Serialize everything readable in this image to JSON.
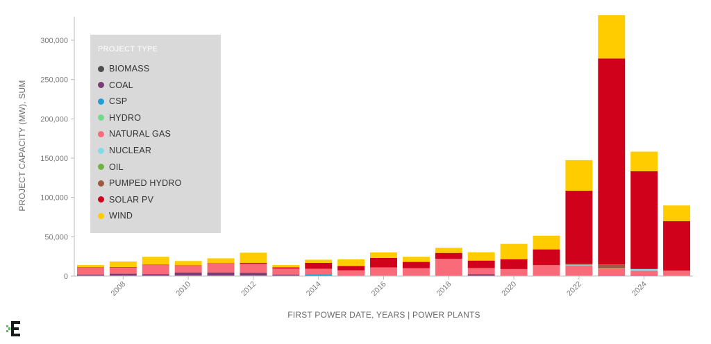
{
  "chart_data": {
    "type": "bar",
    "stacked": true,
    "xlabel": "FIRST POWER DATE, YEARS | POWER PLANTS",
    "ylabel": "PROJECT CAPACITY (MW), SUM",
    "ylim": [
      0,
      330000
    ],
    "yticks": [
      0,
      50000,
      100000,
      150000,
      200000,
      250000,
      300000
    ],
    "ytick_labels": [
      "0",
      "50,000",
      "100,000",
      "150,000",
      "200,000",
      "250,000",
      "300,000"
    ],
    "xlim": [
      2006.5,
      2025.5
    ],
    "xticks": [
      2008,
      2010,
      2012,
      2014,
      2016,
      2018,
      2020,
      2022,
      2024
    ],
    "xtick_labels": [
      "2008",
      "2010",
      "2012",
      "2014",
      "2016",
      "2018",
      "2020",
      "2022",
      "2024"
    ],
    "grid": false,
    "legend": {
      "title": "PROJECT TYPE",
      "placement": "top-left"
    },
    "categories": [
      2007,
      2008,
      2009,
      2010,
      2011,
      2012,
      2013,
      2014,
      2015,
      2016,
      2017,
      2018,
      2019,
      2020,
      2021,
      2022,
      2023,
      2024,
      2025
    ],
    "series": [
      {
        "name": "BIOMASS",
        "color": "#4d4d4d",
        "values": [
          500,
          500,
          500,
          600,
          600,
          700,
          500,
          300,
          200,
          200,
          200,
          100,
          200,
          100,
          100,
          200,
          300,
          300,
          100
        ]
      },
      {
        "name": "COAL",
        "color": "#7b3b73",
        "values": [
          1500,
          2500,
          2000,
          4000,
          4000,
          3500,
          1500,
          500,
          500,
          300,
          300,
          300,
          2000,
          300,
          300,
          300,
          500,
          500,
          200
        ]
      },
      {
        "name": "CSP",
        "color": "#1f9fd6",
        "values": [
          0,
          0,
          0,
          0,
          0,
          0,
          0,
          1500,
          0,
          0,
          0,
          0,
          0,
          0,
          0,
          0,
          0,
          0,
          0
        ]
      },
      {
        "name": "HYDRO",
        "color": "#6fdc8c",
        "values": [
          0,
          0,
          0,
          0,
          0,
          0,
          0,
          0,
          0,
          0,
          0,
          0,
          0,
          0,
          0,
          0,
          0,
          0,
          0
        ]
      },
      {
        "name": "NATURAL GAS",
        "color": "#fa6b7a",
        "values": [
          8500,
          8000,
          11500,
          8500,
          11500,
          11000,
          7500,
          7000,
          6500,
          10500,
          9500,
          21500,
          8000,
          8500,
          13500,
          13000,
          8500,
          6000,
          6500
        ]
      },
      {
        "name": "NUCLEAR",
        "color": "#7fdde6",
        "values": [
          0,
          0,
          0,
          0,
          0,
          0,
          0,
          0,
          0,
          0,
          0,
          0,
          0,
          0,
          0,
          1000,
          500,
          2000,
          0
        ]
      },
      {
        "name": "OIL",
        "color": "#6fb43f",
        "values": [
          0,
          0,
          0,
          0,
          0,
          0,
          0,
          0,
          0,
          0,
          0,
          0,
          0,
          0,
          0,
          0,
          0,
          0,
          0
        ]
      },
      {
        "name": "PUMPED HYDRO",
        "color": "#9e5a3c",
        "values": [
          0,
          0,
          0,
          0,
          0,
          0,
          0,
          0,
          0,
          0,
          0,
          0,
          0,
          0,
          0,
          1000,
          5000,
          500,
          0
        ]
      },
      {
        "name": "SOLAR PV",
        "color": "#d0021b",
        "values": [
          500,
          500,
          500,
          500,
          500,
          1500,
          1500,
          7500,
          5500,
          12000,
          8000,
          7500,
          9500,
          12500,
          20000,
          93000,
          262000,
          124000,
          63000
        ]
      },
      {
        "name": "WIND",
        "color": "#ffcc00",
        "values": [
          3000,
          7000,
          10000,
          5500,
          6000,
          13000,
          3000,
          4000,
          8500,
          7000,
          6500,
          6500,
          10500,
          19500,
          17500,
          39000,
          55000,
          25000,
          20000
        ]
      }
    ]
  },
  "brand": {
    "logo_icon": "company-logo-icon",
    "logo_colors": [
      "#1a1a1a",
      "#5cb85c"
    ]
  }
}
